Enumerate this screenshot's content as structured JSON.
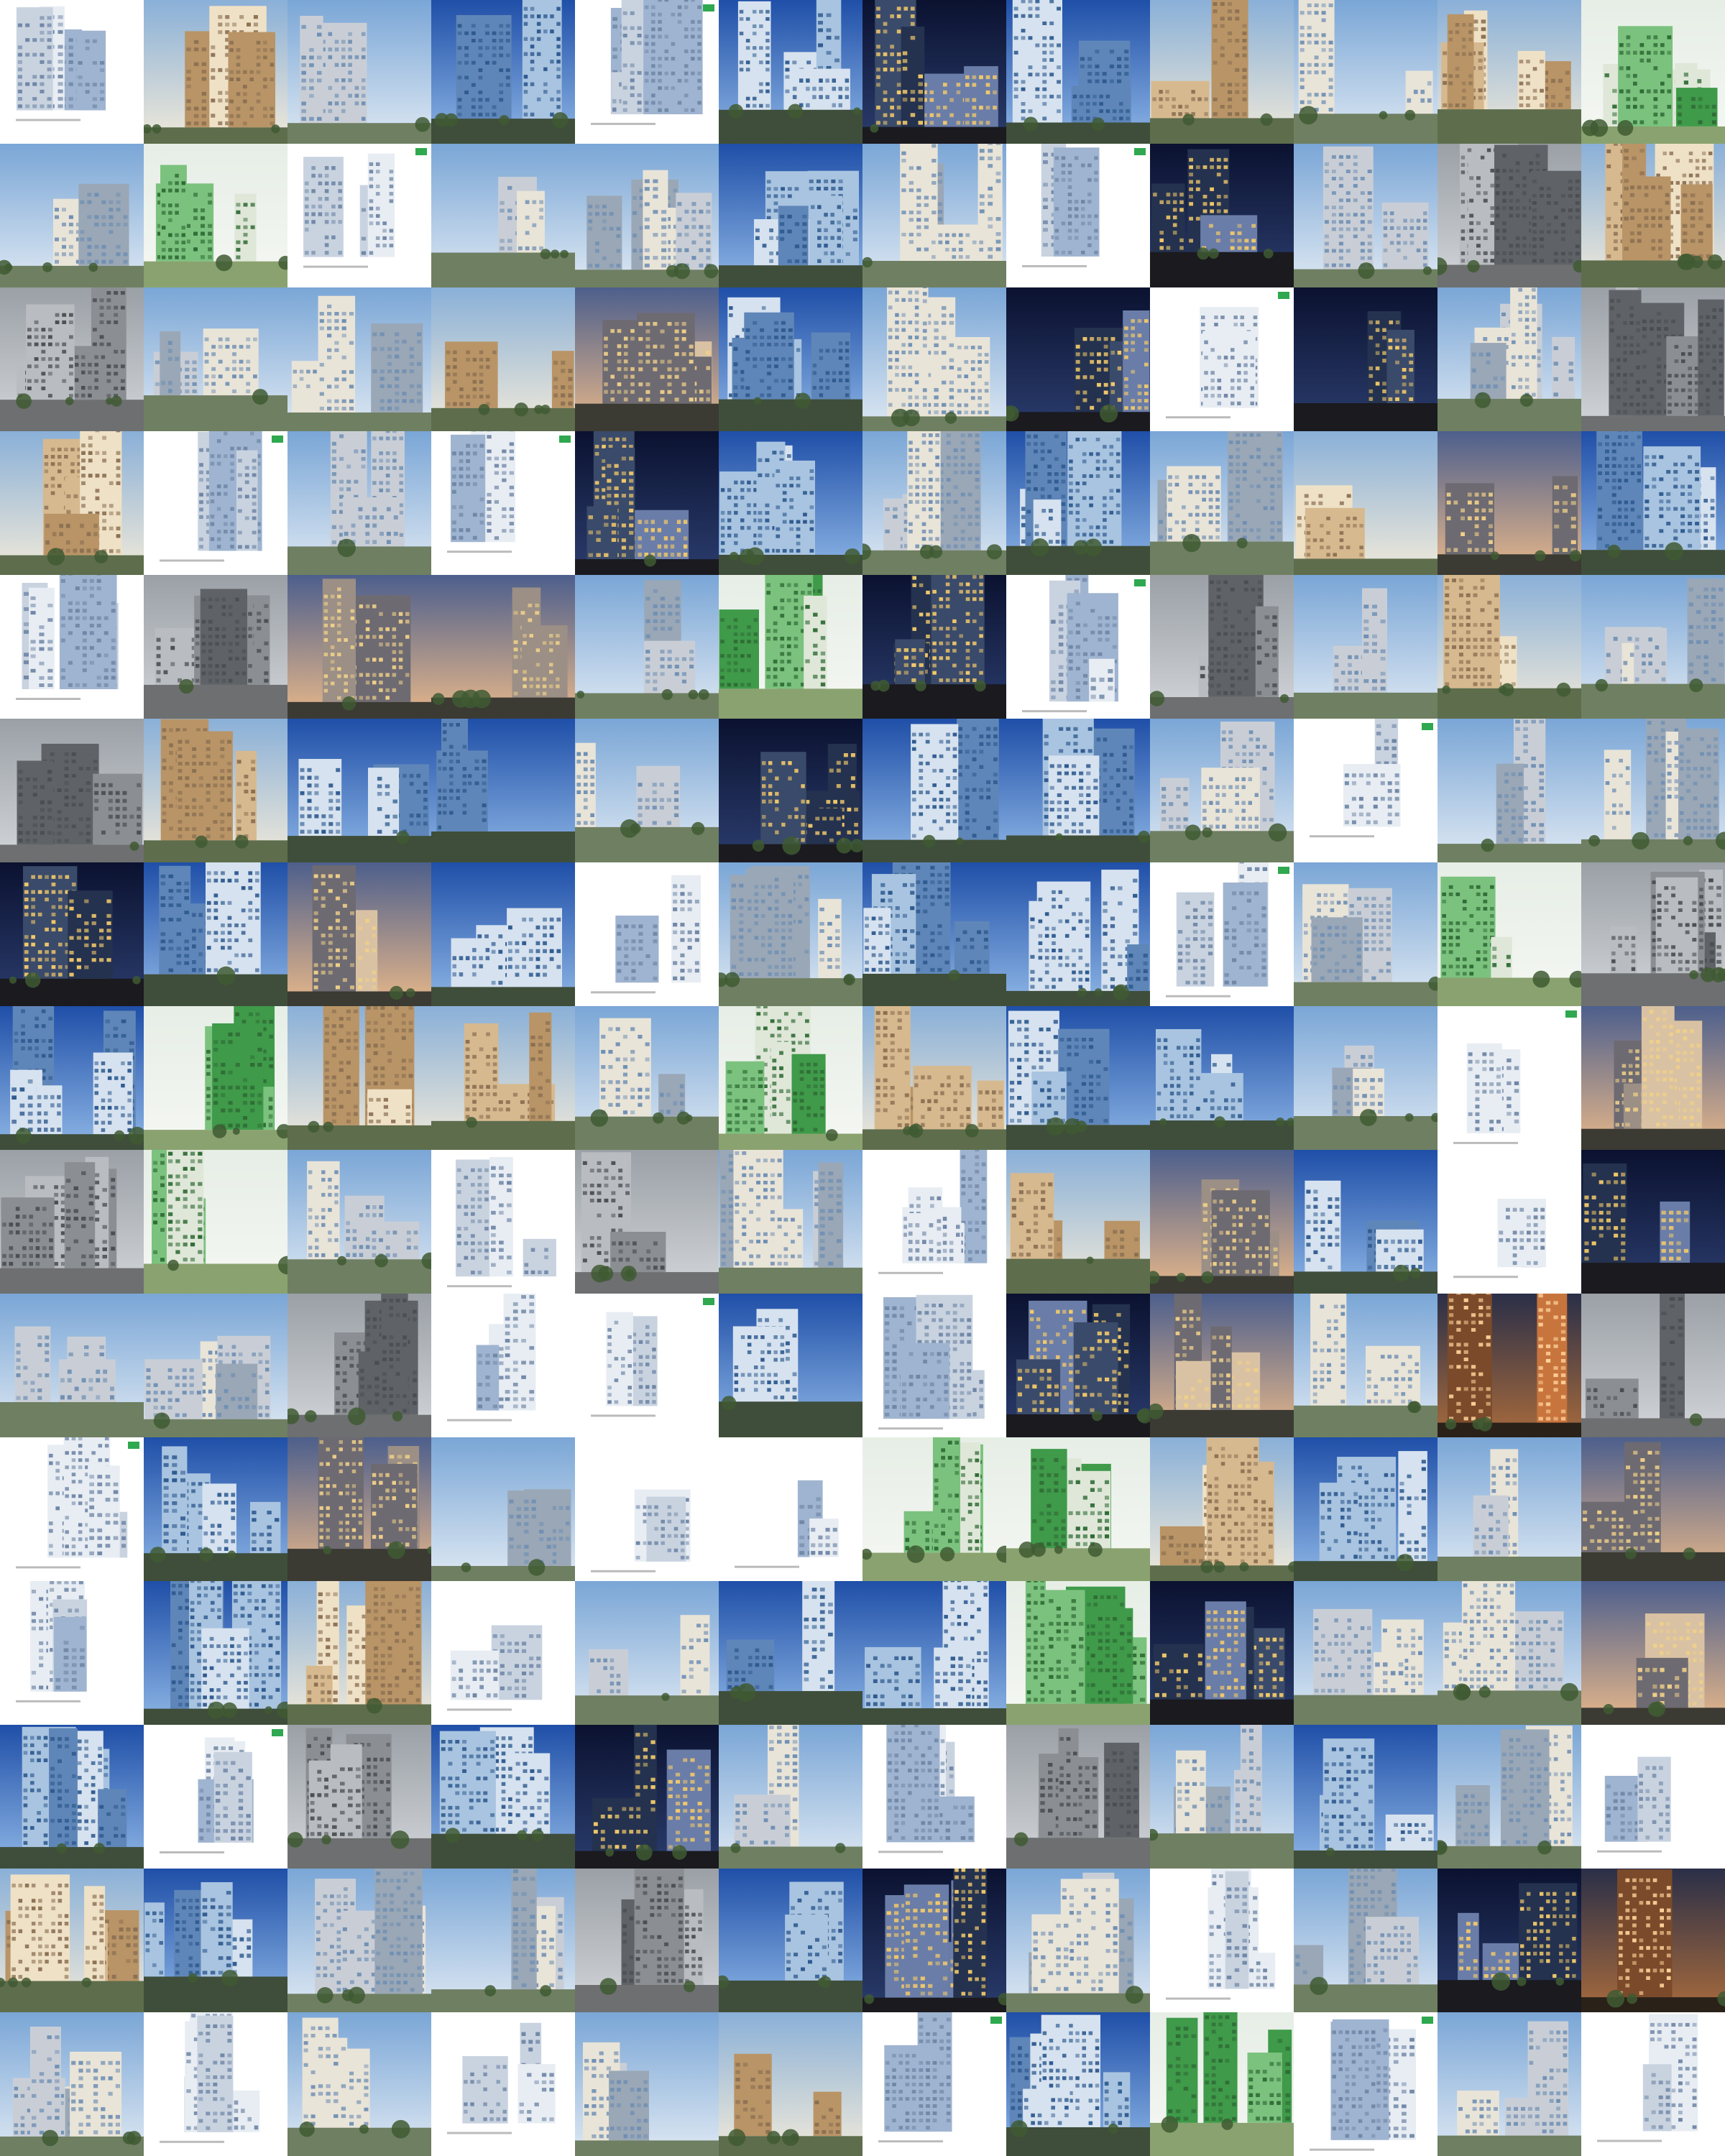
{
  "mosaic": {
    "columns": 12,
    "rows": 15,
    "palettes": {
      "day": {
        "sky_top": "#7aa6d6",
        "sky_bottom": "#dfe9f3",
        "ground": "#6f7f62",
        "b1": "#c9ced6",
        "b2": "#9aa7b6",
        "b3": "#e9e4d8",
        "window": "#6f8fb3"
      },
      "blue": {
        "sky_top": "#1f4fa8",
        "sky_bottom": "#8fb7e6",
        "ground": "#3f4e3a",
        "b1": "#a9c4e0",
        "b2": "#5f86b8",
        "b3": "#d6e2ef",
        "window": "#2e5a8f"
      },
      "night": {
        "sky_top": "#0b1230",
        "sky_bottom": "#2b3d6e",
        "ground": "#1a1a1f",
        "b1": "#3a4a6a",
        "b2": "#24324f",
        "b3": "#6a7da8",
        "window": "#f2c96a"
      },
      "dusk": {
        "sky_top": "#4d5f8c",
        "sky_bottom": "#e8b88a",
        "ground": "#3b3a33",
        "b1": "#9b8f86",
        "b2": "#6d6a72",
        "b3": "#d9c2a3",
        "window": "#f0d089"
      },
      "warm": {
        "sky_top": "#8ab0d8",
        "sky_bottom": "#f1ead9",
        "ground": "#5e6d4c",
        "b1": "#d7b98f",
        "b2": "#b99466",
        "b3": "#efe1c6",
        "window": "#8a6f52"
      },
      "paper": {
        "sky_top": "#ffffff",
        "sky_bottom": "#ffffff",
        "ground": "#ffffff",
        "b1": "#9fb4d0",
        "b2": "#c9d3e0",
        "b3": "#e8edf3",
        "window": "#6f86a6"
      },
      "green": {
        "sky_top": "#e6eee6",
        "sky_bottom": "#f5f7f3",
        "ground": "#8aa26f",
        "b1": "#3f9a4a",
        "b2": "#7bc27e",
        "b3": "#dfe7d8",
        "window": "#2f6b35"
      },
      "grey": {
        "sky_top": "#9aa0a6",
        "sky_bottom": "#d3d6da",
        "ground": "#6d6f70",
        "b1": "#8b8f93",
        "b2": "#5f6367",
        "b3": "#b9bcc0",
        "window": "#4a4e52"
      },
      "glow": {
        "sky_top": "#2a2f48",
        "sky_bottom": "#a86b3c",
        "ground": "#2a2119",
        "b1": "#c8743d",
        "b2": "#7a4a2a",
        "b3": "#f2c190",
        "window": "#ffd49a"
      }
    },
    "tiles": [
      "paper",
      "warm",
      "day",
      "blue",
      "paper",
      "blue",
      "night",
      "blue",
      "warm",
      "day",
      "warm",
      "green",
      "day",
      "green",
      "paper",
      "day",
      "day",
      "blue",
      "day",
      "paper",
      "night",
      "day",
      "grey",
      "warm",
      "grey",
      "day",
      "day",
      "warm",
      "dusk",
      "blue",
      "day",
      "night",
      "paper",
      "night",
      "day",
      "grey",
      "warm",
      "paper",
      "day",
      "paper",
      "night",
      "blue",
      "day",
      "blue",
      "day",
      "warm",
      "dusk",
      "blue",
      "paper",
      "grey",
      "dusk",
      "dusk",
      "day",
      "green",
      "night",
      "paper",
      "grey",
      "day",
      "warm",
      "day",
      "grey",
      "warm",
      "blue",
      "blue",
      "day",
      "night",
      "blue",
      "blue",
      "day",
      "paper",
      "day",
      "day",
      "night",
      "blue",
      "dusk",
      "blue",
      "paper",
      "day",
      "blue",
      "blue",
      "paper",
      "day",
      "green",
      "grey",
      "blue",
      "green",
      "warm",
      "warm",
      "day",
      "green",
      "warm",
      "blue",
      "blue",
      "day",
      "paper",
      "dusk",
      "grey",
      "green",
      "day",
      "paper",
      "grey",
      "day",
      "paper",
      "warm",
      "dusk",
      "blue",
      "paper",
      "night",
      "day",
      "day",
      "grey",
      "paper",
      "paper",
      "blue",
      "paper",
      "night",
      "dusk",
      "day",
      "glow",
      "grey",
      "paper",
      "blue",
      "dusk",
      "day",
      "paper",
      "paper",
      "green",
      "green",
      "warm",
      "blue",
      "day",
      "dusk",
      "paper",
      "blue",
      "warm",
      "paper",
      "day",
      "blue",
      "blue",
      "green",
      "night",
      "day",
      "day",
      "dusk",
      "blue",
      "paper",
      "grey",
      "blue",
      "night",
      "day",
      "paper",
      "grey",
      "day",
      "blue",
      "day",
      "paper",
      "warm",
      "blue",
      "day",
      "day",
      "grey",
      "blue",
      "night",
      "day",
      "paper",
      "day",
      "night",
      "glow",
      "day",
      "paper",
      "day",
      "paper",
      "day",
      "warm",
      "paper",
      "blue",
      "green",
      "paper",
      "day",
      "paper"
    ]
  }
}
